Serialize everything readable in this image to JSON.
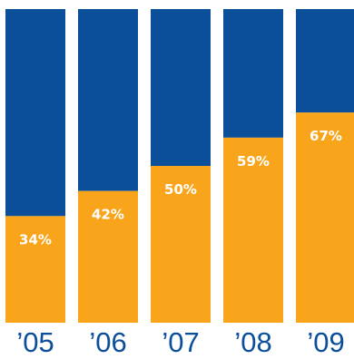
{
  "chart_data": {
    "type": "bar",
    "stacked": true,
    "categories": [
      "’05",
      "’06",
      "’07",
      "’08",
      "’09"
    ],
    "values": [
      34,
      42,
      50,
      59,
      67
    ],
    "value_labels": [
      "34%",
      "42%",
      "50%",
      "59%",
      "67%"
    ],
    "ylim": [
      0,
      100
    ],
    "grid": false,
    "legend": "none"
  },
  "colors": {
    "bottom_segment": "#F8A51C",
    "top_segment": "#0B4E9A",
    "year_label": "#0B4E9A",
    "value_label": "#FFFFFF"
  }
}
